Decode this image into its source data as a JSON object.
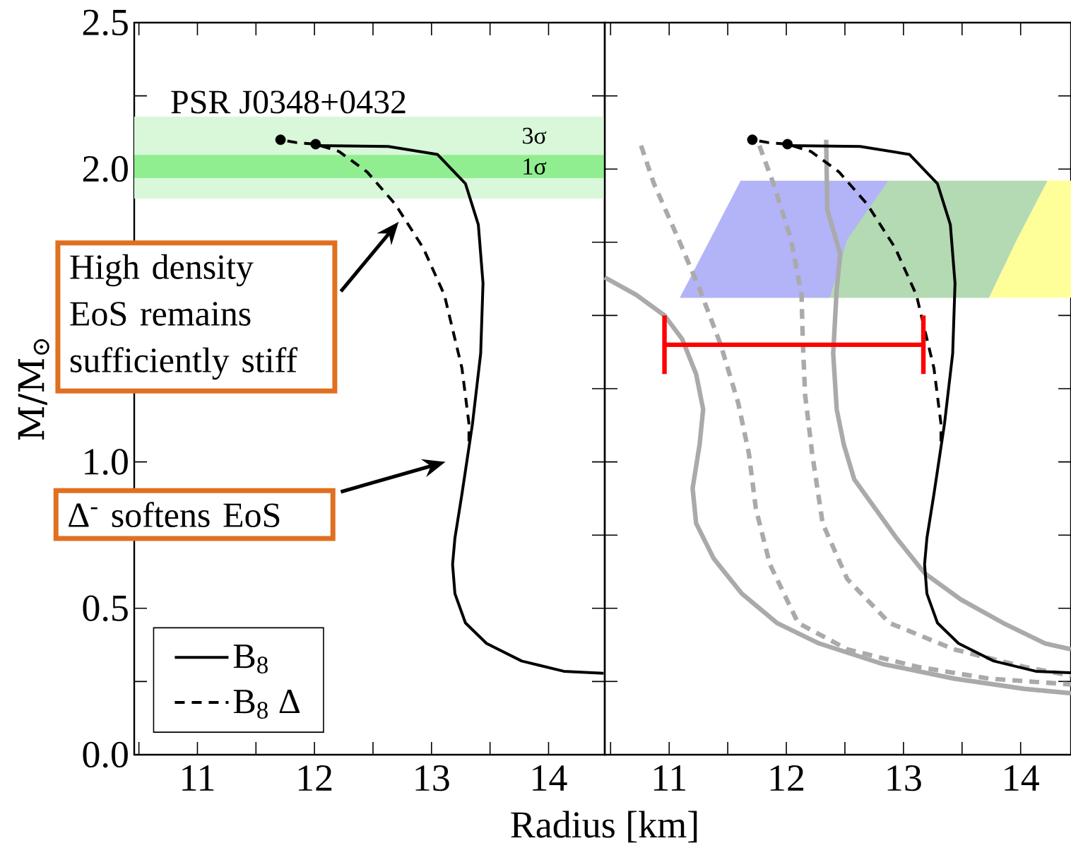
{
  "chart_data": [
    {
      "type": "line",
      "xlabel": "Radius [km]",
      "ylabel": "M/M$_{⊙}$",
      "xlim": [
        10.46,
        14.48
      ],
      "ylim": [
        0,
        2.5
      ],
      "xticks": [
        11,
        12,
        13,
        14
      ],
      "yticks": [
        {
          "value": 0,
          "label": "0.0"
        },
        0.5,
        {
          "value": 1,
          "label": "1.0"
        },
        {
          "value": 2,
          "label": "2.0"
        },
        2.5
      ],
      "legend": "bottom left",
      "bands": [
        {
          "axis": "y",
          "from": 1.899,
          "to": 2.179,
          "label": "3σ",
          "color": "#d9f7d9"
        },
        {
          "axis": "y",
          "from": 1.969,
          "to": 2.048,
          "label": "1σ",
          "color": "#90ee90"
        }
      ],
      "annotations": [
        "PSR J0348+0432",
        "High density EoS remains sufficiently stiff",
        "Δ$^{-}$ softens EoS"
      ],
      "series": [
        {
          "name": "B$_{8}$",
          "color": "#000000",
          "line_style": "solid",
          "x": [
            14.47,
            14.13,
            13.77,
            13.47,
            13.29,
            13.2,
            13.18,
            13.2,
            13.26,
            13.35,
            13.42,
            13.44,
            13.4,
            13.29,
            13.05,
            12.63,
            12.01
          ],
          "values": [
            0.278,
            0.285,
            0.32,
            0.38,
            0.45,
            0.55,
            0.65,
            0.74,
            0.89,
            1.13,
            1.37,
            1.61,
            1.81,
            1.95,
            2.05,
            2.077,
            2.08
          ]
        },
        {
          "name": "B$_{8}$ Δ",
          "color": "#000000",
          "line_style": "dashed",
          "x": [
            13.32,
            13.32,
            13.26,
            13.11,
            12.93,
            12.69,
            12.45,
            12.21,
            12.01,
            11.85,
            11.71
          ],
          "values": [
            1.07,
            1.13,
            1.32,
            1.57,
            1.73,
            1.88,
            1.99,
            2.06,
            2.085,
            2.09,
            2.1
          ]
        },
        {
          "type": "scatter",
          "color": "#000000",
          "marker": "circle",
          "x": [
            11.71,
            12.01
          ],
          "values": [
            2.1,
            2.085
          ]
        }
      ]
    },
    {
      "type": "line",
      "tick_labels": "x",
      "xlim": [
        10.45,
        14.43
      ],
      "ylim": [
        0,
        2.5
      ],
      "xticks": [
        11,
        12,
        13,
        14
      ],
      "yticks": [
        0,
        0.5,
        1,
        2,
        2.5
      ],
      "series": [
        {
          "type": "area",
          "color": "#b3b3f8",
          "x": [
            11.09,
            11.61,
            12.87,
            12.37
          ],
          "values": [
            1.56,
            1.96,
            1.96,
            1.56
          ]
        },
        {
          "type": "area",
          "color": "#b3dab3",
          "x": [
            12.37,
            12.52,
            12.87,
            14.23,
            13.97,
            13.73
          ],
          "values": [
            1.56,
            1.76,
            1.96,
            1.96,
            1.76,
            1.56
          ]
        },
        {
          "type": "area",
          "color": "#ffff99",
          "x": [
            13.73,
            13.97,
            14.23,
            14.43,
            14.43
          ],
          "values": [
            1.56,
            1.76,
            1.96,
            1.96,
            1.56
          ]
        },
        {
          "color": "#aaaaaa",
          "line_style": "solid",
          "x": [
            10.45,
            10.72,
            10.96,
            11.11,
            11.23,
            11.29,
            11.26,
            11.2,
            11.23,
            11.38,
            11.62,
            11.92,
            12.28,
            12.82,
            13.43,
            14.03,
            14.43
          ],
          "values": [
            1.63,
            1.57,
            1.5,
            1.42,
            1.3,
            1.18,
            1.06,
            0.91,
            0.79,
            0.67,
            0.55,
            0.45,
            0.38,
            0.31,
            0.26,
            0.225,
            0.21
          ]
        },
        {
          "color": "#aaaaaa",
          "line_style": "dashed",
          "x": [
            10.76,
            10.87,
            11.08,
            11.26,
            11.44,
            11.59,
            11.68,
            11.74,
            11.86,
            12.1,
            12.52,
            13.12,
            13.73,
            14.43
          ],
          "values": [
            2.08,
            1.95,
            1.76,
            1.59,
            1.4,
            1.2,
            1.03,
            0.84,
            0.65,
            0.45,
            0.36,
            0.3,
            0.26,
            0.24
          ]
        },
        {
          "color": "#aaaaaa",
          "line_style": "dashed",
          "x": [
            11.77,
            11.89,
            12.04,
            12.13,
            12.14,
            12.16,
            12.22,
            12.31,
            12.52,
            12.88,
            13.43,
            14.03,
            14.43
          ],
          "values": [
            2.08,
            1.95,
            1.76,
            1.57,
            1.42,
            1.23,
            1.03,
            0.79,
            0.6,
            0.45,
            0.36,
            0.3,
            0.27
          ]
        },
        {
          "color": "#aaaaaa",
          "line_style": "solid",
          "x": [
            12.34,
            12.35,
            12.46,
            12.43,
            12.4,
            12.43,
            12.49,
            12.58,
            12.76,
            12.94,
            13.18,
            13.49,
            13.85,
            14.21,
            14.43
          ],
          "values": [
            2.1,
            1.86,
            1.71,
            1.59,
            1.37,
            1.18,
            1.06,
            0.94,
            0.84,
            0.74,
            0.62,
            0.53,
            0.45,
            0.38,
            0.36
          ]
        },
        {
          "color": "#000000",
          "line_style": "solid",
          "x": [
            14.43,
            14.13,
            13.77,
            13.47,
            13.29,
            13.2,
            13.18,
            13.2,
            13.26,
            13.35,
            13.42,
            13.44,
            13.4,
            13.29,
            13.05,
            12.63,
            12.01
          ],
          "values": [
            0.28,
            0.285,
            0.32,
            0.38,
            0.45,
            0.55,
            0.65,
            0.74,
            0.89,
            1.13,
            1.37,
            1.61,
            1.81,
            1.95,
            2.05,
            2.077,
            2.08
          ]
        },
        {
          "color": "#000000",
          "line_style": "dashed",
          "x": [
            13.32,
            13.32,
            13.26,
            13.11,
            12.93,
            12.69,
            12.45,
            12.21,
            12.01,
            11.85,
            11.71
          ],
          "values": [
            1.07,
            1.13,
            1.32,
            1.57,
            1.73,
            1.88,
            1.99,
            2.06,
            2.085,
            2.09,
            2.1
          ]
        },
        {
          "type": "scatter",
          "color": "#000000",
          "marker": "circle",
          "x": [
            11.71,
            12.01
          ],
          "values": [
            2.1,
            2.085
          ]
        },
        {
          "color": "#ff0000",
          "line_style": "solid",
          "x": [
            10.96,
            13.17
          ],
          "values": [
            1.4,
            1.4
          ]
        },
        {
          "color": "#ff0000",
          "line_style": "solid",
          "x": [
            10.96,
            10.96
          ],
          "values": [
            1.3,
            1.5
          ]
        },
        {
          "color": "#ff0000",
          "line_style": "solid",
          "x": [
            13.17,
            13.17
          ],
          "values": [
            1.3,
            1.5
          ]
        }
      ]
    }
  ]
}
